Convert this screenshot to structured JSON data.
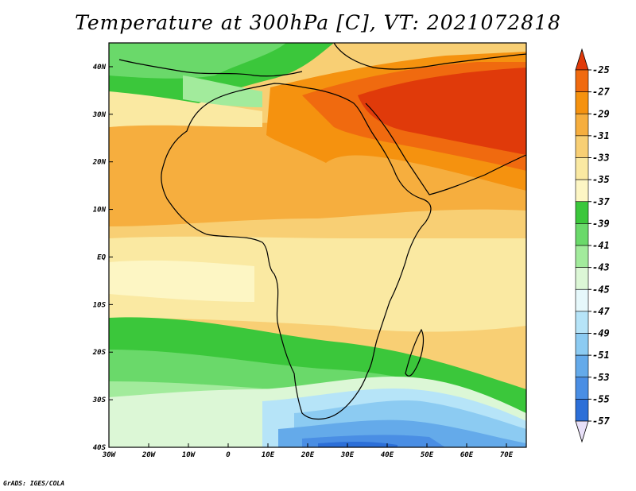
{
  "title": "Temperature at 300hPa [C], VT: 2021072818",
  "credit": "GrADS: IGES/COLA",
  "axes": {
    "lon_ticks": [
      {
        "lon": -30,
        "label": "30W"
      },
      {
        "lon": -20,
        "label": "20W"
      },
      {
        "lon": -10,
        "label": "10W"
      },
      {
        "lon": 0,
        "label": "0"
      },
      {
        "lon": 10,
        "label": "10E"
      },
      {
        "lon": 20,
        "label": "20E"
      },
      {
        "lon": 30,
        "label": "30E"
      },
      {
        "lon": 40,
        "label": "40E"
      },
      {
        "lon": 50,
        "label": "50E"
      },
      {
        "lon": 60,
        "label": "60E"
      },
      {
        "lon": 70,
        "label": "70E"
      }
    ],
    "lat_ticks": [
      {
        "lat": 40,
        "label": "40N"
      },
      {
        "lat": 30,
        "label": "30N"
      },
      {
        "lat": 20,
        "label": "20N"
      },
      {
        "lat": 10,
        "label": "10N"
      },
      {
        "lat": 0,
        "label": "EQ"
      },
      {
        "lat": -10,
        "label": "10S"
      },
      {
        "lat": -20,
        "label": "20S"
      },
      {
        "lat": -30,
        "label": "30S"
      },
      {
        "lat": -40,
        "label": "40S"
      }
    ],
    "lon_range": [
      -30,
      75
    ],
    "lat_range": [
      -40,
      45
    ]
  },
  "colorbar": {
    "levels": [
      "-25",
      "-27",
      "-29",
      "-31",
      "-33",
      "-35",
      "-37",
      "-39",
      "-41",
      "-43",
      "-45",
      "-47",
      "-49",
      "-51",
      "-53",
      "-55",
      "-57"
    ],
    "colors": [
      "#e03a0a",
      "#f06a0f",
      "#f5920f",
      "#f6ae3e",
      "#f8cf74",
      "#fae9a2",
      "#fdf6c4",
      "#3bc73b",
      "#6ad96a",
      "#a2eb9c",
      "#dcf7d6",
      "#e6f8fb",
      "#b6e4f8",
      "#8ccbf2",
      "#64aaea",
      "#4a8ee4",
      "#2c6fd8",
      "#1c52c8",
      "#0c38b0",
      "#061e7e"
    ],
    "top_arrow": "#e03a0a",
    "bottom_arrow": "#e8e0f8"
  }
}
